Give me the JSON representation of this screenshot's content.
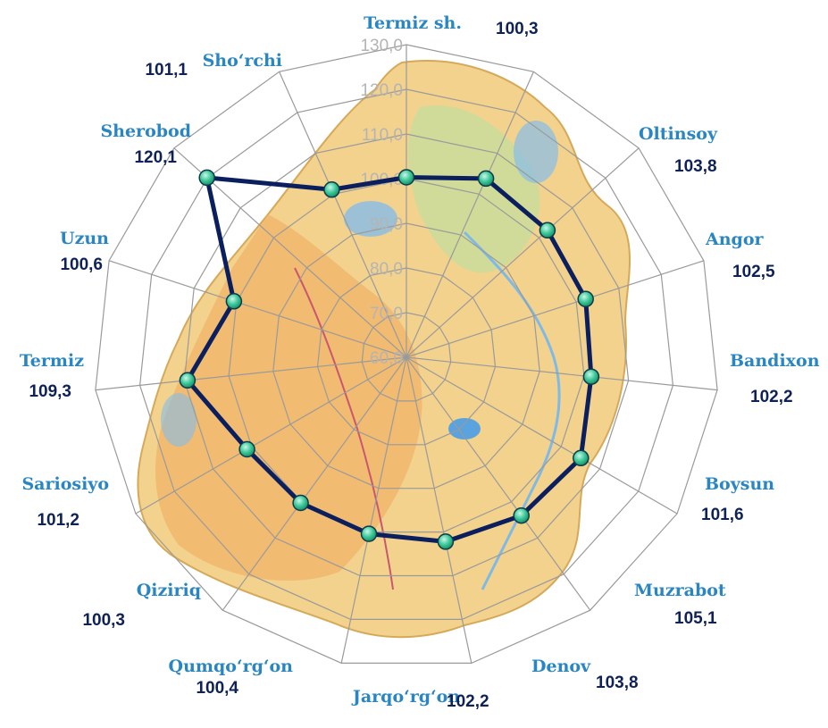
{
  "chart_data": {
    "type": "radar",
    "title": "",
    "ticks": [
      "60,0",
      "70,0",
      "80,0",
      "90,0",
      "100,0",
      "110,0",
      "120,0",
      "130,0"
    ],
    "rlim": [
      60,
      130
    ],
    "grid": true,
    "background": "map of Surxondaryo region",
    "colors": {
      "line": "#0b1f5e",
      "marker": "#3ec99a",
      "category": "#2a86c2",
      "value": "#0e2257",
      "tick": "#b4b4b4",
      "grid": "#9a9a9a"
    },
    "categories": [
      {
        "name": "Termiz sh.",
        "value": 100.3,
        "label": "100,3"
      },
      {
        "name": "Oltinsoy",
        "value": 103.8,
        "label": "103,8"
      },
      {
        "name": "Angor",
        "value": 102.5,
        "label": "102,5"
      },
      {
        "name": "Bandixon",
        "value": 102.2,
        "label": "102,2"
      },
      {
        "name": "Boysun",
        "value": 101.6,
        "label": "101,6"
      },
      {
        "name": "Muzrabot",
        "value": 105.1,
        "label": "105,1"
      },
      {
        "name": "Denov",
        "value": 103.8,
        "label": "103,8"
      },
      {
        "name": "Jarqo‘rg‘on",
        "value": 102.2,
        "label": "102,2"
      },
      {
        "name": "Qumqo‘rg‘on",
        "value": 100.4,
        "label": "100,4"
      },
      {
        "name": "Qiziriq",
        "value": 100.3,
        "label": "100,3"
      },
      {
        "name": "Sariosiyo",
        "value": 101.2,
        "label": "101,2"
      },
      {
        "name": "Termiz",
        "value": 109.3,
        "label": "109,3"
      },
      {
        "name": "Uzun",
        "value": 100.6,
        "label": "100,6"
      },
      {
        "name": "Sherobod",
        "value": 120.1,
        "label": "120,1"
      },
      {
        "name": "Sho‘rchi",
        "value": 101.1,
        "label": "101,1"
      }
    ]
  }
}
